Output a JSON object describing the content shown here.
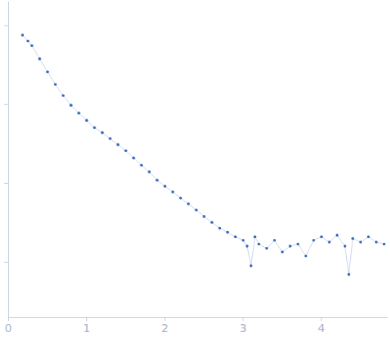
{
  "chart_data": {
    "type": "scatter",
    "color": "#3a68bd",
    "marker": "circle",
    "log": "y",
    "tick_labels": "x",
    "xlim": [
      0,
      4.84
    ],
    "xticks": [
      0,
      1,
      2,
      3,
      4
    ],
    "ylim": [
      0.0002,
      2
    ],
    "yticks": [
      0.001,
      0.01,
      0.1,
      1
    ],
    "x": [
      0.18,
      0.25,
      0.3,
      0.4,
      0.5,
      0.6,
      0.7,
      0.8,
      0.9,
      1.0,
      1.1,
      1.2,
      1.3,
      1.4,
      1.5,
      1.6,
      1.7,
      1.8,
      1.9,
      2.0,
      2.1,
      2.2,
      2.3,
      2.4,
      2.5,
      2.6,
      2.7,
      2.8,
      2.9,
      3.0,
      3.05,
      3.1,
      3.15,
      3.2,
      3.3,
      3.4,
      3.5,
      3.6,
      3.7,
      3.8,
      3.9,
      4.0,
      4.1,
      4.2,
      4.3,
      4.35,
      4.4,
      4.5,
      4.6,
      4.7,
      4.8
    ],
    "values": [
      0.76,
      0.64,
      0.56,
      0.38,
      0.26,
      0.18,
      0.13,
      0.098,
      0.078,
      0.063,
      0.051,
      0.044,
      0.037,
      0.031,
      0.026,
      0.021,
      0.017,
      0.014,
      0.011,
      0.0092,
      0.0078,
      0.0065,
      0.0055,
      0.0046,
      0.0038,
      0.0032,
      0.0027,
      0.0024,
      0.0021,
      0.0019,
      0.0016,
      0.0009,
      0.0021,
      0.0017,
      0.0015,
      0.0019,
      0.00135,
      0.0016,
      0.0017,
      0.0012,
      0.0019,
      0.0021,
      0.0018,
      0.0022,
      0.0016,
      0.0007,
      0.002,
      0.0018,
      0.0021,
      0.0018,
      0.0017
    ]
  }
}
